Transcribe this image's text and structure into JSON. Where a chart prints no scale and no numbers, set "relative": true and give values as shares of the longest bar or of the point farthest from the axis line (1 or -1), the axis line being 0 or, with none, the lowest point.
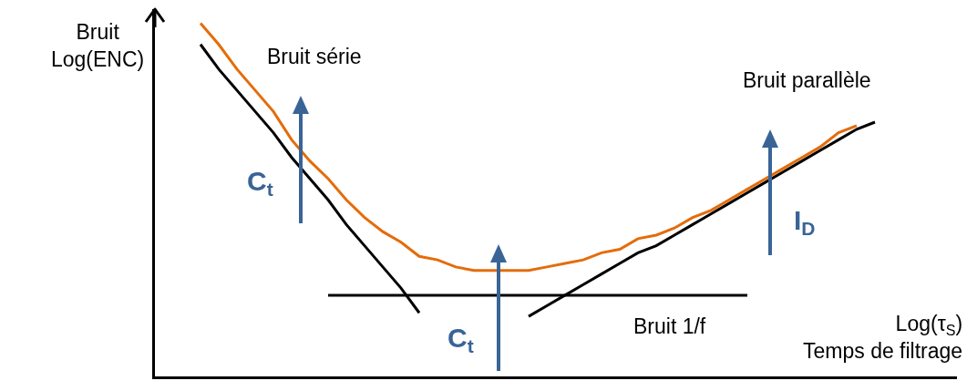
{
  "chart_data": {
    "type": "line",
    "relative": true,
    "xlabel": "Log(τ$_{S}$)\nTemps de filtrage",
    "ylabel": "Bruit\nLog(ENC)",
    "categories": [
      null,
      null,
      null,
      null,
      null,
      null,
      null,
      null,
      null,
      null,
      null,
      null,
      null,
      null,
      null,
      null,
      null,
      null,
      null,
      null,
      null,
      null,
      null,
      null,
      null,
      null,
      null,
      null,
      null,
      null,
      null,
      null,
      null,
      null,
      null,
      null,
      null,
      null
    ],
    "series": [
      {
        "name": "Bruit série",
        "color": "#000000",
        "values": [
          0.94,
          0.87,
          0.81,
          0.75,
          0.69,
          0.62,
          0.56,
          0.5,
          0.43,
          0.37,
          0.31,
          0.25,
          0.18,
          null,
          null,
          null,
          null,
          null,
          null,
          null,
          null,
          null,
          null,
          null,
          null,
          null,
          null,
          null,
          null,
          null,
          null,
          null,
          null,
          null,
          null,
          null,
          null,
          null
        ]
      },
      {
        "name": "Bruit 1/f",
        "color": "#000000",
        "values": [
          null,
          null,
          null,
          null,
          null,
          null,
          null,
          0.23,
          0.23,
          0.23,
          0.23,
          0.23,
          0.23,
          0.23,
          0.23,
          0.23,
          0.23,
          0.23,
          0.23,
          0.23,
          0.23,
          0.23,
          0.23,
          0.23,
          0.23,
          0.23,
          0.23,
          0.23,
          0.23,
          0.23,
          0.23,
          null,
          null,
          null,
          null,
          null,
          null,
          null
        ]
      },
      {
        "name": "Bruit parallèle",
        "color": "#000000",
        "values": [
          null,
          null,
          null,
          null,
          null,
          null,
          null,
          null,
          null,
          null,
          null,
          null,
          null,
          null,
          null,
          null,
          null,
          null,
          0.17,
          0.2,
          0.23,
          0.26,
          0.29,
          0.32,
          0.35,
          0.37,
          0.4,
          0.43,
          0.46,
          0.49,
          0.52,
          0.55,
          0.58,
          0.61,
          0.64,
          0.67,
          0.7,
          0.72
        ]
      },
      {
        "color": "#e46c0a",
        "values": [
          1.0,
          0.94,
          0.87,
          0.81,
          0.75,
          0.67,
          0.61,
          0.56,
          0.5,
          0.45,
          0.41,
          0.38,
          0.34,
          0.33,
          0.31,
          0.3,
          0.3,
          0.3,
          0.3,
          0.31,
          0.32,
          0.33,
          0.35,
          0.36,
          0.39,
          0.4,
          0.42,
          0.45,
          0.47,
          0.5,
          0.53,
          0.56,
          0.59,
          0.62,
          0.65,
          0.69,
          0.71,
          null
        ]
      }
    ],
    "annotations": [
      "C$_{t}$",
      "C$_{t}$",
      "I$_{D}$"
    ],
    "legend": false,
    "marker": "none",
    "line_style": "solid"
  }
}
